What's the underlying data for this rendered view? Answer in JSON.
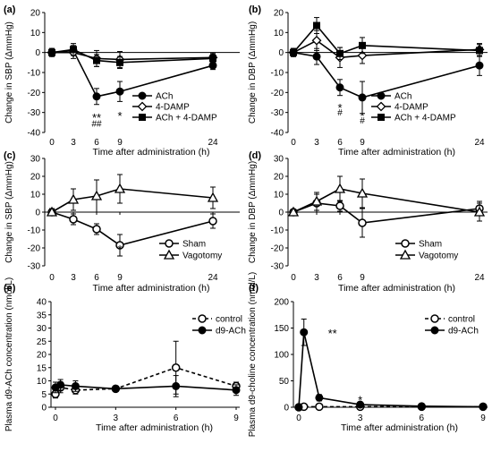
{
  "chart_data": [
    {
      "panel_label": "(a)",
      "type": "line",
      "ylabel": "Change in  SBP (ΔmmHg)",
      "xlabel": "Time after administration (h)",
      "xticks": [
        0,
        3,
        6,
        9,
        24
      ],
      "yticks": [
        20,
        10,
        0,
        -10,
        -20,
        -30,
        -40
      ],
      "ylim": [
        -40,
        20
      ],
      "series": [
        {
          "name": "ACh",
          "marker": "filled-circle",
          "x": [
            0,
            3,
            6,
            9,
            24
          ],
          "y": [
            0,
            1,
            -22,
            -19.5,
            -6.5
          ],
          "err": [
            2,
            2.5,
            4,
            5,
            2
          ]
        },
        {
          "name": "4-DAMP",
          "marker": "open-diamond",
          "x": [
            0,
            3,
            6,
            9,
            24
          ],
          "y": [
            0,
            0,
            -3,
            -3.5,
            -2.5
          ],
          "err": [
            1.5,
            3,
            4,
            4,
            2
          ]
        },
        {
          "name": "ACh + 4-DAMP",
          "marker": "filled-square",
          "x": [
            0,
            3,
            6,
            9,
            24
          ],
          "y": [
            0,
            1.5,
            -4,
            -5,
            -3
          ],
          "err": [
            2,
            3,
            3,
            3,
            2
          ]
        }
      ],
      "annotations": [
        {
          "text": "**",
          "x": 6,
          "y": -32
        },
        {
          "text": "##",
          "x": 6,
          "y": -37
        },
        {
          "text": "*",
          "x": 9,
          "y": -31
        }
      ]
    },
    {
      "panel_label": "(b)",
      "type": "line",
      "ylabel": "Change in  DBP (ΔmmHg)",
      "xlabel": "Time after administration (h)",
      "xticks": [
        0,
        3,
        6,
        9,
        24
      ],
      "yticks": [
        20,
        10,
        0,
        -10,
        -20,
        -30,
        -40
      ],
      "ylim": [
        -40,
        20
      ],
      "series": [
        {
          "name": "ACh",
          "marker": "filled-circle",
          "x": [
            0,
            3,
            6,
            9,
            24
          ],
          "y": [
            0,
            -2,
            -17.5,
            -22.5,
            -6.5
          ],
          "err": [
            2,
            4,
            4,
            8,
            5
          ]
        },
        {
          "name": "4-DAMP",
          "marker": "open-diamond",
          "x": [
            0,
            3,
            6,
            9,
            24
          ],
          "y": [
            0,
            6,
            -2.5,
            -1.5,
            1.5
          ],
          "err": [
            2,
            5,
            5,
            4,
            3
          ]
        },
        {
          "name": "ACh + 4-DAMP",
          "marker": "filled-square",
          "x": [
            0,
            3,
            6,
            9,
            24
          ],
          "y": [
            0,
            13.5,
            -0.5,
            3.5,
            1
          ],
          "err": [
            2,
            4,
            3,
            4,
            3
          ]
        }
      ],
      "annotations": [
        {
          "text": "*",
          "x": 6,
          "y": -27
        },
        {
          "text": "#",
          "x": 6,
          "y": -31.5
        },
        {
          "text": "*",
          "x": 9,
          "y": -31
        },
        {
          "text": "#",
          "x": 9,
          "y": -35.5
        }
      ]
    },
    {
      "panel_label": "(c)",
      "type": "line",
      "ylabel": "Change in  SBP (ΔmmHg)",
      "xlabel": "Time after administration (h)",
      "xticks": [
        0,
        3,
        6,
        9,
        24
      ],
      "yticks": [
        30,
        20,
        10,
        0,
        -10,
        -20,
        -30
      ],
      "ylim": [
        -30,
        30
      ],
      "series": [
        {
          "name": "Sham",
          "marker": "open-circle",
          "x": [
            0,
            3,
            6,
            9,
            24
          ],
          "y": [
            0,
            -4,
            -9.5,
            -18.5,
            -5
          ],
          "err": [
            2,
            3,
            3,
            6,
            4
          ]
        },
        {
          "name": "Vagotomy",
          "marker": "open-triangle",
          "x": [
            0,
            3,
            6,
            9,
            24
          ],
          "y": [
            0,
            7,
            9,
            13,
            8
          ],
          "err": [
            2,
            6,
            9,
            8,
            6
          ]
        }
      ],
      "annotations": [
        {
          "text": "*",
          "x": 9,
          "y": -20
        }
      ]
    },
    {
      "panel_label": "(d)",
      "type": "line",
      "ylabel": "Change in  DBP (ΔmmHg)",
      "xlabel": "Time after administration (h)",
      "xticks": [
        0,
        3,
        6,
        9,
        24
      ],
      "yticks": [
        30,
        20,
        10,
        0,
        -10,
        -20,
        -30
      ],
      "ylim": [
        -30,
        30
      ],
      "series": [
        {
          "name": "Sham",
          "marker": "open-circle",
          "x": [
            0,
            3,
            6,
            9,
            24
          ],
          "y": [
            0,
            5,
            3.5,
            -6,
            2
          ],
          "err": [
            1.5,
            5,
            3,
            8,
            4
          ]
        },
        {
          "name": "Vagotomy",
          "marker": "open-triangle",
          "x": [
            0,
            3,
            6,
            9,
            24
          ],
          "y": [
            0,
            6,
            13,
            10.5,
            0
          ],
          "err": [
            1.5,
            5,
            7,
            8,
            5
          ]
        }
      ],
      "annotations": []
    },
    {
      "panel_label": "(e)",
      "type": "line",
      "ylabel": "Plasma d9-ACh concentration (nmol/L)",
      "xlabel": "Time after administration (h)",
      "xticks": [
        0,
        3,
        6,
        9
      ],
      "yticks": [
        40,
        35,
        30,
        25,
        20,
        15,
        10,
        5,
        0
      ],
      "ylim": [
        0,
        40
      ],
      "series": [
        {
          "name": "control",
          "marker": "open-circle",
          "dashed": true,
          "x": [
            0,
            0.25,
            1,
            3,
            6,
            9
          ],
          "y": [
            5,
            7.5,
            6.5,
            7,
            15,
            8
          ],
          "err": [
            1.5,
            2,
            1.5,
            1,
            10,
            1.5
          ]
        },
        {
          "name": "d9-ACh",
          "marker": "filled-circle",
          "dashed": false,
          "x": [
            0,
            0.25,
            1,
            3,
            6,
            9
          ],
          "y": [
            7.5,
            8.5,
            8,
            7,
            8,
            6.5
          ],
          "err": [
            2,
            2,
            2,
            1,
            4,
            2
          ]
        }
      ],
      "annotations": []
    },
    {
      "panel_label": "(f)",
      "type": "line",
      "ylabel": "Plasma d9-choline concentration (nmol/L)",
      "xlabel": "Time after administration (h)",
      "xticks": [
        0,
        3,
        6,
        9
      ],
      "yticks": [
        200,
        150,
        100,
        50,
        0
      ],
      "ylim": [
        0,
        200
      ],
      "series": [
        {
          "name": "control",
          "marker": "open-circle",
          "dashed": true,
          "x": [
            0,
            0.25,
            1,
            3,
            6,
            9
          ],
          "y": [
            0,
            1,
            1,
            1,
            1,
            1
          ],
          "err": [
            0,
            0,
            0,
            0,
            0,
            0
          ]
        },
        {
          "name": "d9-ACh",
          "marker": "filled-circle",
          "dashed": false,
          "x": [
            0,
            0.25,
            1,
            3,
            6,
            9
          ],
          "y": [
            0,
            142,
            18,
            5,
            2,
            1
          ],
          "err": [
            0,
            25,
            6,
            3,
            1,
            0
          ]
        }
      ],
      "annotations": [
        {
          "text": "**",
          "x": 0.9,
          "y": 142
        },
        {
          "text": "*",
          "x": 3,
          "y": 16
        }
      ]
    }
  ]
}
